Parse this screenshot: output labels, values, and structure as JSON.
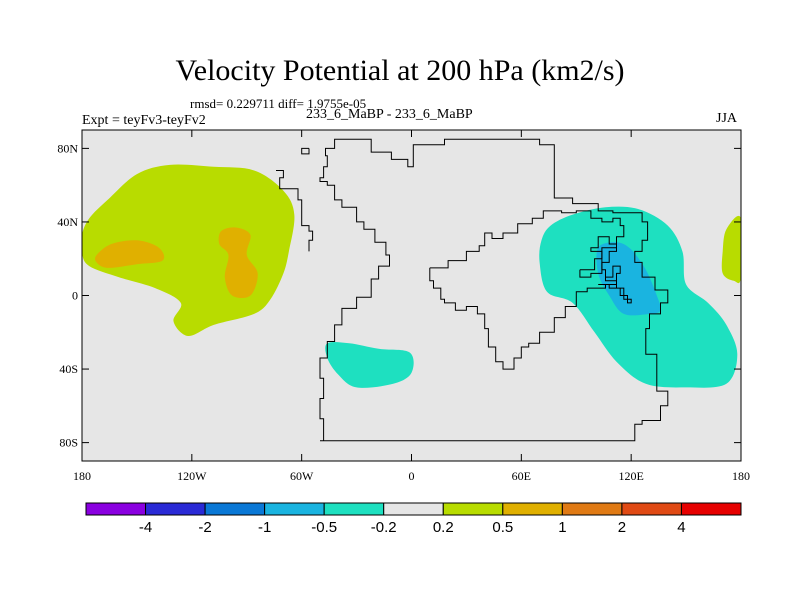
{
  "title": "Velocity Potential at 200 hPa (km2/s)",
  "subtitle": "rmsd= 0.229711 diff= 1.9755e-05",
  "left_label": "Expt = teyFv3-teyFv2",
  "center_label": "233_6_MaBP - 233_6_MaBP",
  "right_label": "JJA",
  "colors": {
    "background": "#e6e6e6",
    "coast": "#000000",
    "levels": [
      "#8a00e0",
      "#2a2ad6",
      "#0a78d6",
      "#1ab4e0",
      "#1ee0c0",
      "#e6e6e6",
      "#b8dc00",
      "#e0b000",
      "#e07a14",
      "#e04a14",
      "#e60000"
    ]
  },
  "chart_data": {
    "type": "contour-map",
    "projection": "cylindrical-equidistant",
    "xlim": [
      -180,
      180
    ],
    "ylim": [
      -90,
      90
    ],
    "x_ticks": [
      {
        "value": -180,
        "label": "180"
      },
      {
        "value": -120,
        "label": "120W"
      },
      {
        "value": -60,
        "label": "60W"
      },
      {
        "value": 0,
        "label": "0"
      },
      {
        "value": 60,
        "label": "60E"
      },
      {
        "value": 120,
        "label": "120E"
      },
      {
        "value": 180,
        "label": "180"
      }
    ],
    "y_ticks": [
      {
        "value": 80,
        "label": "80N"
      },
      {
        "value": 40,
        "label": "40N"
      },
      {
        "value": 0,
        "label": "0"
      },
      {
        "value": -40,
        "label": "40S"
      },
      {
        "value": -80,
        "label": "80S"
      }
    ],
    "colorbar": {
      "labels": [
        "-4",
        "-2",
        "-1",
        "-0.5",
        "-0.2",
        "0.2",
        "0.5",
        "1",
        "2",
        "4"
      ]
    },
    "regions": [
      {
        "name": "north-pacific-positive",
        "level": 0.5,
        "points": [
          [
            -180,
            33
          ],
          [
            -176,
            42
          ],
          [
            -166,
            52
          ],
          [
            -150,
            66
          ],
          [
            -132,
            71
          ],
          [
            -108,
            70
          ],
          [
            -86,
            68
          ],
          [
            -70,
            57
          ],
          [
            -64,
            44
          ],
          [
            -67,
            24
          ],
          [
            -70,
            12
          ],
          [
            -77,
            -2
          ],
          [
            -86,
            -10
          ],
          [
            -108,
            -16
          ],
          [
            -122,
            -22
          ],
          [
            -130,
            -14
          ],
          [
            -126,
            -4
          ],
          [
            -140,
            4
          ],
          [
            -160,
            10
          ],
          [
            -176,
            16
          ],
          [
            -180,
            23
          ]
        ]
      },
      {
        "name": "north-pacific-inner-west",
        "level": 1.0,
        "points": [
          [
            -172,
            22
          ],
          [
            -164,
            28
          ],
          [
            -150,
            30
          ],
          [
            -138,
            26
          ],
          [
            -136,
            19
          ],
          [
            -150,
            17
          ],
          [
            -166,
            15
          ],
          [
            -172,
            18
          ]
        ]
      },
      {
        "name": "north-pacific-inner-east",
        "level": 1.0,
        "points": [
          [
            -104,
            35
          ],
          [
            -96,
            37
          ],
          [
            -88,
            33
          ],
          [
            -90,
            22
          ],
          [
            -84,
            12
          ],
          [
            -88,
            0
          ],
          [
            -98,
            0
          ],
          [
            -102,
            10
          ],
          [
            -100,
            22
          ],
          [
            -105,
            28
          ]
        ]
      },
      {
        "name": "south-america-negative",
        "level": -0.2,
        "points": [
          [
            -46,
            -26
          ],
          [
            -34,
            -26
          ],
          [
            -18,
            -29
          ],
          [
            -1,
            -31
          ],
          [
            0,
            -42
          ],
          [
            -10,
            -48
          ],
          [
            -30,
            -50
          ],
          [
            -40,
            -43
          ],
          [
            -46,
            -34
          ]
        ]
      },
      {
        "name": "indo-pacific-negative",
        "level": -0.2,
        "points": [
          [
            76,
            38
          ],
          [
            88,
            44
          ],
          [
            106,
            48
          ],
          [
            124,
            47
          ],
          [
            140,
            38
          ],
          [
            148,
            24
          ],
          [
            150,
            6
          ],
          [
            162,
            -4
          ],
          [
            172,
            -16
          ],
          [
            178,
            -32
          ],
          [
            172,
            -48
          ],
          [
            150,
            -50
          ],
          [
            128,
            -48
          ],
          [
            112,
            -36
          ],
          [
            100,
            -20
          ],
          [
            88,
            -4
          ],
          [
            74,
            2
          ],
          [
            70,
            18
          ],
          [
            71,
            30
          ]
        ]
      },
      {
        "name": "indo-pacific-inner",
        "level": -0.5,
        "points": [
          [
            102,
            26
          ],
          [
            112,
            29
          ],
          [
            120,
            25
          ],
          [
            128,
            14
          ],
          [
            134,
            0
          ],
          [
            136,
            -8
          ],
          [
            130,
            -10
          ],
          [
            116,
            -10
          ],
          [
            108,
            0
          ],
          [
            102,
            12
          ]
        ]
      },
      {
        "name": "date-line-positive",
        "level": 0.5,
        "points": [
          [
            180,
            42
          ],
          [
            172,
            36
          ],
          [
            170,
            24
          ],
          [
            170,
            12
          ],
          [
            176,
            8
          ],
          [
            180,
            10
          ]
        ]
      }
    ],
    "coastlines": [
      {
        "name": "southern-coast",
        "points": [
          [
            -50,
            -79
          ],
          [
            -48,
            -67
          ],
          [
            -50,
            -56
          ],
          [
            -48,
            -45
          ],
          [
            -50,
            -34
          ],
          [
            -46,
            -25
          ],
          [
            -42,
            -16
          ],
          [
            -38,
            -7
          ],
          [
            -30,
            -1
          ],
          [
            -22,
            9
          ],
          [
            -18,
            16
          ],
          [
            -12,
            22
          ],
          [
            -14,
            29
          ],
          [
            -20,
            36
          ],
          [
            -26,
            40
          ],
          [
            -30,
            48
          ],
          [
            -38,
            52
          ],
          [
            -42,
            60
          ],
          [
            -46,
            62
          ],
          [
            -50,
            64
          ],
          [
            -48,
            70
          ],
          [
            -46,
            76
          ],
          [
            -47,
            80
          ],
          [
            -43,
            80
          ],
          [
            -42,
            85
          ],
          [
            -22,
            85
          ],
          [
            -22,
            78
          ],
          [
            -13,
            78
          ],
          [
            -11,
            74
          ],
          [
            -2,
            70
          ],
          [
            1,
            82
          ],
          [
            18,
            82
          ],
          [
            18,
            85
          ],
          [
            36,
            85
          ],
          [
            62,
            85
          ],
          [
            70,
            82
          ],
          [
            78,
            70
          ],
          [
            78,
            53
          ],
          [
            88,
            50
          ],
          [
            102,
            46
          ],
          [
            110,
            45
          ],
          [
            122,
            45
          ],
          [
            126,
            40
          ],
          [
            129,
            30
          ],
          [
            126,
            24
          ],
          [
            122,
            18
          ],
          [
            126,
            10
          ],
          [
            133,
            3
          ],
          [
            140,
            -4
          ],
          [
            136,
            -10
          ],
          [
            130,
            -18
          ],
          [
            128,
            -32
          ],
          [
            134,
            -44
          ],
          [
            134,
            -52
          ],
          [
            140,
            -52
          ],
          [
            140,
            -60
          ],
          [
            136,
            -68
          ],
          [
            126,
            -70
          ],
          [
            122,
            -79
          ],
          [
            60,
            -79
          ],
          [
            0,
            -79
          ],
          [
            -50,
            -79
          ]
        ]
      },
      {
        "name": "coast-fragment-north",
        "points": [
          [
            -56,
            80
          ],
          [
            -60,
            80
          ],
          [
            -60,
            77
          ],
          [
            -56,
            77
          ],
          [
            -56,
            80
          ]
        ]
      },
      {
        "name": "coast-fragment-west",
        "points": [
          [
            -74,
            68
          ],
          [
            -70,
            64
          ],
          [
            -72,
            58
          ],
          [
            -66,
            58
          ],
          [
            -62,
            52
          ],
          [
            -60,
            46
          ],
          [
            -60,
            38
          ],
          [
            -56,
            35
          ],
          [
            -54,
            30
          ],
          [
            -56,
            24
          ]
        ]
      },
      {
        "name": "inner-mountain-line",
        "points": [
          [
            10,
            15
          ],
          [
            20,
            19
          ],
          [
            30,
            24
          ],
          [
            37,
            27
          ],
          [
            40,
            34
          ],
          [
            44,
            31
          ],
          [
            50,
            34
          ],
          [
            58,
            39
          ],
          [
            66,
            42
          ],
          [
            72,
            46
          ],
          [
            82,
            45
          ],
          [
            90,
            46
          ],
          [
            98,
            42
          ],
          [
            104,
            40
          ],
          [
            110,
            42
          ],
          [
            114,
            38
          ],
          [
            116,
            32
          ],
          [
            112,
            26
          ],
          [
            104,
            20
          ],
          [
            104,
            14
          ],
          [
            106,
            10
          ],
          [
            110,
            16
          ],
          [
            114,
            12
          ],
          [
            112,
            6
          ],
          [
            106,
            4
          ],
          [
            96,
            2
          ],
          [
            90,
            -6
          ],
          [
            84,
            -12
          ],
          [
            78,
            -20
          ],
          [
            70,
            -26
          ],
          [
            64,
            -28
          ],
          [
            60,
            -34
          ],
          [
            56,
            -40
          ],
          [
            50,
            -40
          ],
          [
            50,
            -36
          ],
          [
            46,
            -28
          ],
          [
            42,
            -18
          ],
          [
            40,
            -10
          ],
          [
            36,
            -6
          ],
          [
            30,
            -8
          ],
          [
            24,
            -4
          ],
          [
            18,
            -2
          ],
          [
            16,
            4
          ],
          [
            12,
            8
          ],
          [
            10,
            15
          ]
        ]
      },
      {
        "name": "inner-sea-line",
        "points": [
          [
            92,
            14
          ],
          [
            100,
            20
          ],
          [
            104,
            24
          ],
          [
            98,
            26
          ],
          [
            102,
            32
          ],
          [
            108,
            28
          ],
          [
            112,
            24
          ],
          [
            108,
            18
          ],
          [
            104,
            12
          ],
          [
            98,
            10
          ],
          [
            92,
            14
          ]
        ]
      },
      {
        "name": "southeast-asia-detail",
        "points": [
          [
            102,
            6
          ],
          [
            108,
            4
          ],
          [
            114,
            0
          ],
          [
            118,
            -4
          ],
          [
            120,
            -2
          ],
          [
            116,
            4
          ],
          [
            112,
            8
          ],
          [
            106,
            10
          ]
        ]
      }
    ]
  }
}
